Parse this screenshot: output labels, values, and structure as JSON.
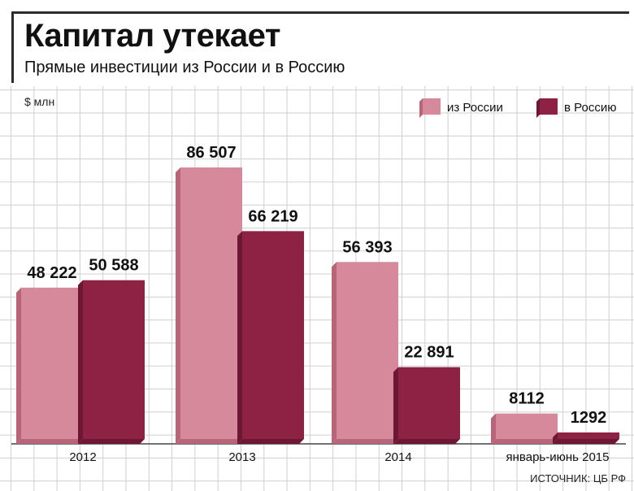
{
  "header": {
    "title": "Капитал утекает",
    "subtitle": "Прямые инвестиции из России и в Россию"
  },
  "unit_label": "$ млн",
  "source": "ИСТОЧНИК: ЦБ РФ",
  "colors": {
    "from_russia": "#d7899c",
    "from_russia_side": "#b86479",
    "to_russia": "#8e2245",
    "to_russia_side": "#6e1735"
  },
  "chart_data": {
    "type": "bar",
    "categories": [
      "2012",
      "2013",
      "2014",
      "январь-июнь 2015"
    ],
    "series": [
      {
        "name": "из России",
        "values": [
          48222,
          86507,
          56393,
          8112
        ],
        "labels": [
          "48 222",
          "86 507",
          "56 393",
          "8112"
        ]
      },
      {
        "name": "в Россию",
        "values": [
          50588,
          66219,
          22891,
          1292
        ],
        "labels": [
          "50 588",
          "66 219",
          "22 891",
          "1292"
        ]
      }
    ],
    "legend_position": "top-right",
    "grid": true
  }
}
